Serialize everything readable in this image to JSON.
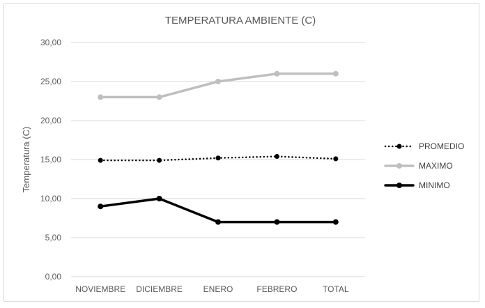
{
  "chart_data": {
    "type": "line",
    "title": "TEMPERATURA AMBIENTE (C)",
    "xlabel": "",
    "ylabel": "Temperatura (C)",
    "categories": [
      "NOVIEMBRE",
      "DICIEMBRE",
      "ENERO",
      "FEBRERO",
      "TOTAL"
    ],
    "ylim": [
      0,
      30
    ],
    "yticks": [
      "0,00",
      "5,00",
      "10,00",
      "15,00",
      "20,00",
      "25,00",
      "30,00"
    ],
    "grid": true,
    "legend_position": "right",
    "series": [
      {
        "name": "PROMEDIO",
        "values": [
          14.9,
          14.9,
          15.2,
          15.4,
          15.1
        ],
        "color": "#000000",
        "style": "dotted"
      },
      {
        "name": "MAXIMO",
        "values": [
          23,
          23,
          25,
          26,
          26
        ],
        "color": "#bfbfbf",
        "style": "solid"
      },
      {
        "name": "MINIMO",
        "values": [
          9,
          10,
          7,
          7,
          7
        ],
        "color": "#000000",
        "style": "solid"
      }
    ]
  }
}
